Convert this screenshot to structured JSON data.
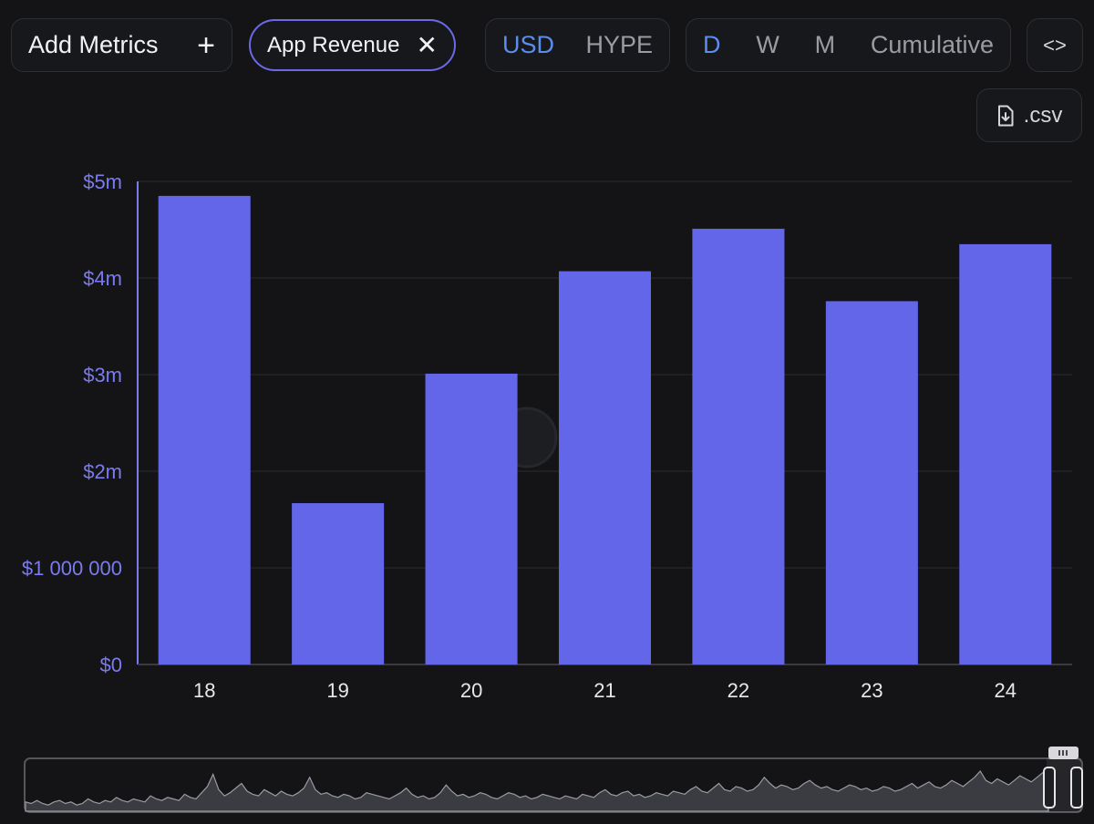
{
  "toolbar": {
    "add_metrics_label": "Add Metrics",
    "add_icon": "plus-icon",
    "chip_label": "App Revenue",
    "chip_close_icon": "close-icon",
    "currency": {
      "options": [
        "USD",
        "HYPE"
      ],
      "selected": "USD"
    },
    "period": {
      "options": [
        "D",
        "W",
        "M",
        "Cumulative"
      ],
      "selected": "D"
    },
    "embed_icon": "code-icon",
    "csv_label": ".csv",
    "csv_icon": "file-download-icon"
  },
  "colors": {
    "bar": "#6366e9",
    "axis": "#7b7bf0",
    "accent": "#5b8def",
    "chip_border": "#6a6ae6",
    "background": "#141416"
  },
  "chart_data": {
    "type": "bar",
    "categories": [
      "18",
      "19",
      "20",
      "21",
      "22",
      "23",
      "24"
    ],
    "values": [
      4850000,
      1670000,
      3010000,
      4070000,
      4510000,
      3760000,
      4350000
    ],
    "y_ticks": [
      0,
      1000000,
      2000000,
      3000000,
      4000000,
      5000000
    ],
    "y_tick_labels": [
      "$0",
      "$1 000 000",
      "$2m",
      "$3m",
      "$4m",
      "$5m"
    ],
    "ylim": [
      0,
      5000000
    ],
    "grid": true
  },
  "overview": {
    "values": [
      6,
      5,
      7,
      5,
      4,
      6,
      7,
      5,
      6,
      4,
      5,
      8,
      6,
      5,
      7,
      6,
      9,
      7,
      6,
      8,
      7,
      6,
      10,
      8,
      7,
      9,
      8,
      7,
      11,
      9,
      8,
      12,
      16,
      24,
      14,
      10,
      12,
      15,
      18,
      13,
      11,
      10,
      14,
      12,
      10,
      13,
      11,
      10,
      12,
      15,
      22,
      14,
      11,
      12,
      10,
      9,
      11,
      10,
      8,
      9,
      12,
      11,
      10,
      9,
      8,
      10,
      12,
      15,
      11,
      9,
      10,
      8,
      9,
      12,
      17,
      13,
      10,
      11,
      9,
      10,
      12,
      11,
      9,
      8,
      10,
      12,
      11,
      9,
      10,
      8,
      9,
      11,
      10,
      9,
      8,
      10,
      9,
      8,
      11,
      10,
      9,
      12,
      14,
      11,
      10,
      12,
      13,
      10,
      11,
      9,
      10,
      12,
      11,
      10,
      13,
      12,
      11,
      14,
      16,
      13,
      12,
      15,
      18,
      14,
      13,
      16,
      15,
      13,
      14,
      17,
      22,
      18,
      15,
      17,
      16,
      14,
      15,
      18,
      20,
      17,
      15,
      16,
      14,
      13,
      15,
      17,
      16,
      14,
      15,
      13,
      14,
      16,
      15,
      13,
      14,
      16,
      18,
      15,
      17,
      19,
      16,
      15,
      17,
      20,
      18,
      16,
      19,
      22,
      26,
      20,
      18,
      21,
      19,
      17,
      20,
      23,
      21,
      19,
      22,
      25,
      24
    ]
  }
}
